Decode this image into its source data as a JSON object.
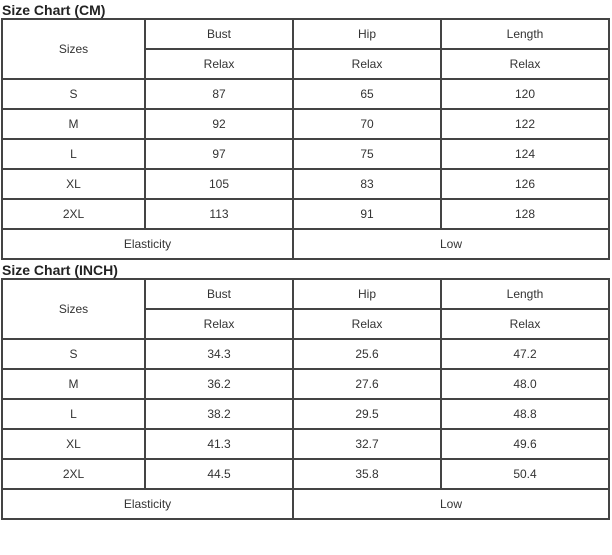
{
  "tables": [
    {
      "title": "Size Chart (CM)",
      "header": {
        "sizes": "Sizes",
        "columns": [
          "Bust",
          "Hip",
          "Length"
        ],
        "sub": [
          "Relax",
          "Relax",
          "Relax"
        ]
      },
      "rows": [
        [
          "S",
          "87",
          "65",
          "120"
        ],
        [
          "M",
          "92",
          "70",
          "122"
        ],
        [
          "L",
          "97",
          "75",
          "124"
        ],
        [
          "XL",
          "105",
          "83",
          "126"
        ],
        [
          "2XL",
          "113",
          "91",
          "128"
        ]
      ],
      "footer": {
        "label": "Elasticity",
        "value": "Low"
      }
    },
    {
      "title": "Size Chart (INCH)",
      "header": {
        "sizes": "Sizes",
        "columns": [
          "Bust",
          "Hip",
          "Length"
        ],
        "sub": [
          "Relax",
          "Relax",
          "Relax"
        ]
      },
      "rows": [
        [
          "S",
          "34.3",
          "25.6",
          "47.2"
        ],
        [
          "M",
          "36.2",
          "27.6",
          "48.0"
        ],
        [
          "L",
          "38.2",
          "29.5",
          "48.8"
        ],
        [
          "XL",
          "41.3",
          "32.7",
          "49.6"
        ],
        [
          "2XL",
          "44.5",
          "35.8",
          "50.4"
        ]
      ],
      "footer": {
        "label": "Elasticity",
        "value": "Low"
      }
    }
  ]
}
